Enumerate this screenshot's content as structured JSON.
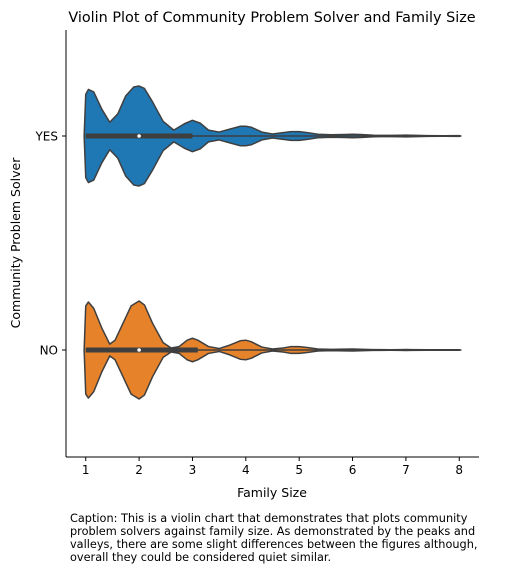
{
  "chart_data": {
    "type": "violin",
    "title": "Violin Plot of Community Problem Solver and Family Size",
    "xlabel": "Family Size",
    "ylabel": "Community Problem Solver",
    "xlim": [
      0.63,
      8.37
    ],
    "xticks": [
      1,
      2,
      3,
      4,
      5,
      6,
      7,
      8
    ],
    "categories": [
      "YES",
      "NO"
    ],
    "series": [
      {
        "name": "YES",
        "color": "#1f77b4",
        "quartiles": [
          1,
          2,
          3
        ],
        "median": 2,
        "whiskers": [
          1,
          8
        ],
        "density_profile": [
          [
            0.97,
            0.0
          ],
          [
            1.0,
            0.85
          ],
          [
            1.05,
            0.95
          ],
          [
            1.15,
            0.9
          ],
          [
            1.3,
            0.55
          ],
          [
            1.45,
            0.28
          ],
          [
            1.6,
            0.45
          ],
          [
            1.75,
            0.82
          ],
          [
            1.9,
            1.0
          ],
          [
            2.0,
            1.02
          ],
          [
            2.1,
            0.97
          ],
          [
            2.25,
            0.7
          ],
          [
            2.45,
            0.3
          ],
          [
            2.65,
            0.12
          ],
          [
            2.85,
            0.25
          ],
          [
            3.0,
            0.32
          ],
          [
            3.15,
            0.26
          ],
          [
            3.3,
            0.12
          ],
          [
            3.5,
            0.08
          ],
          [
            3.7,
            0.14
          ],
          [
            3.9,
            0.2
          ],
          [
            4.0,
            0.2
          ],
          [
            4.1,
            0.18
          ],
          [
            4.3,
            0.08
          ],
          [
            4.5,
            0.04
          ],
          [
            4.7,
            0.07
          ],
          [
            4.85,
            0.09
          ],
          [
            5.0,
            0.09
          ],
          [
            5.15,
            0.07
          ],
          [
            5.35,
            0.035
          ],
          [
            5.6,
            0.025
          ],
          [
            5.85,
            0.03
          ],
          [
            6.0,
            0.035
          ],
          [
            6.15,
            0.03
          ],
          [
            6.4,
            0.015
          ],
          [
            6.7,
            0.012
          ],
          [
            6.9,
            0.015
          ],
          [
            7.0,
            0.018
          ],
          [
            7.1,
            0.015
          ],
          [
            7.4,
            0.008
          ],
          [
            7.7,
            0.006
          ],
          [
            8.0,
            0.008
          ],
          [
            8.03,
            0.0
          ]
        ]
      },
      {
        "name": "NO",
        "color": "#e6822a",
        "quartiles": [
          1,
          2,
          3.1
        ],
        "median": 2,
        "whiskers": [
          1,
          8
        ],
        "density_profile": [
          [
            0.97,
            0.0
          ],
          [
            1.0,
            0.9
          ],
          [
            1.05,
            0.98
          ],
          [
            1.15,
            0.85
          ],
          [
            1.3,
            0.45
          ],
          [
            1.45,
            0.12
          ],
          [
            1.55,
            0.2
          ],
          [
            1.7,
            0.55
          ],
          [
            1.85,
            0.9
          ],
          [
            2.0,
            1.0
          ],
          [
            2.1,
            0.92
          ],
          [
            2.25,
            0.55
          ],
          [
            2.45,
            0.15
          ],
          [
            2.6,
            0.04
          ],
          [
            2.75,
            0.07
          ],
          [
            2.9,
            0.2
          ],
          [
            3.0,
            0.24
          ],
          [
            3.1,
            0.2
          ],
          [
            3.3,
            0.07
          ],
          [
            3.5,
            0.03
          ],
          [
            3.7,
            0.1
          ],
          [
            3.9,
            0.19
          ],
          [
            4.0,
            0.2
          ],
          [
            4.1,
            0.17
          ],
          [
            4.3,
            0.06
          ],
          [
            4.5,
            0.02
          ],
          [
            4.7,
            0.04
          ],
          [
            4.85,
            0.07
          ],
          [
            5.0,
            0.07
          ],
          [
            5.15,
            0.05
          ],
          [
            5.35,
            0.02
          ],
          [
            5.6,
            0.012
          ],
          [
            5.85,
            0.018
          ],
          [
            6.0,
            0.02
          ],
          [
            6.15,
            0.015
          ],
          [
            6.4,
            0.008
          ],
          [
            6.7,
            0.006
          ],
          [
            6.9,
            0.008
          ],
          [
            7.0,
            0.01
          ],
          [
            7.1,
            0.008
          ],
          [
            7.4,
            0.005
          ],
          [
            7.7,
            0.004
          ],
          [
            8.0,
            0.005
          ],
          [
            8.03,
            0.0
          ]
        ]
      }
    ]
  },
  "caption": "Caption: This is a violin chart that demonstrates that plots community problem solvers against family size. As demonstrated by the peaks and valleys, there are some slight differences between the figures although, overall they could be considered quiet similar."
}
